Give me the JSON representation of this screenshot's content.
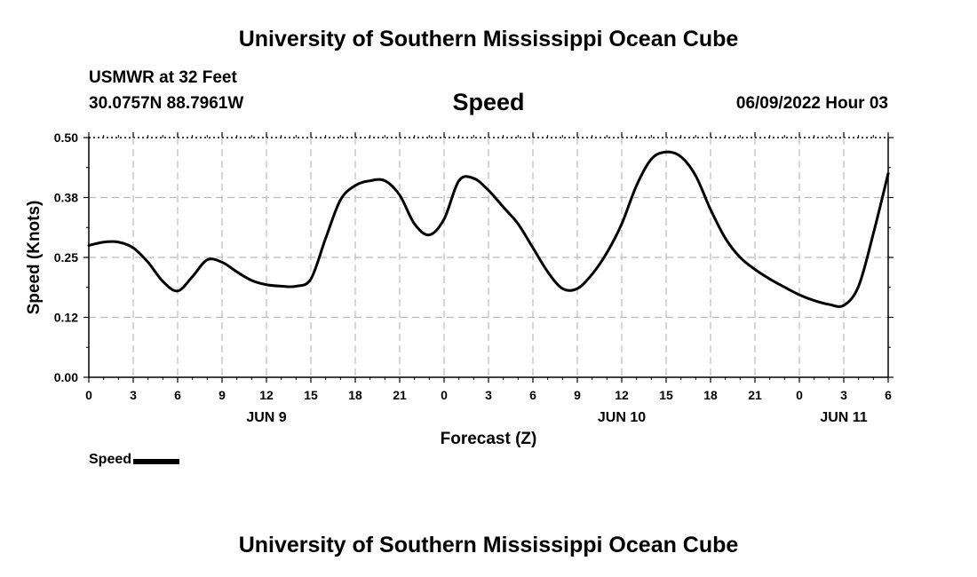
{
  "header": {
    "top_title": "University of Southern Mississippi Ocean Cube",
    "bottom_title": "University of Southern Mississippi Ocean Cube",
    "station_name": "USMWR at 32 Feet",
    "station_coords": "30.0757N  88.7961W",
    "timestamp": "06/09/2022 Hour 03"
  },
  "legend": {
    "label": "Speed"
  },
  "colors": {
    "line": "#000000",
    "grid": "#bbbbbb",
    "background": "#ffffff"
  },
  "chart_data": {
    "type": "line",
    "title": "Speed",
    "xlabel": "Forecast (Z)",
    "ylabel": "Speed (Knots)",
    "ylim": [
      0,
      0.5
    ],
    "xlim": [
      0,
      54
    ],
    "grid": true,
    "legend_position": "bottom-left",
    "y_ticks": [
      "0.00",
      "0.12",
      "0.25",
      "0.38",
      "0.50"
    ],
    "x_ticks": [
      "0",
      "3",
      "6",
      "9",
      "12",
      "15",
      "18",
      "21",
      "0",
      "3",
      "6",
      "9",
      "12",
      "15",
      "18",
      "21",
      "0",
      "3",
      "6"
    ],
    "day_labels": [
      {
        "label": "JUN 9",
        "x": 12
      },
      {
        "label": "JUN 10",
        "x": 36
      },
      {
        "label": "JUN 11",
        "x": 51
      }
    ],
    "series": [
      {
        "name": "Speed",
        "x": [
          0,
          1,
          2,
          3,
          4,
          5,
          6,
          7,
          8,
          9,
          10,
          11,
          12,
          13,
          14,
          15,
          16,
          17,
          18,
          19,
          20,
          21,
          22,
          23,
          24,
          25,
          26,
          27,
          28,
          29,
          30,
          31,
          32,
          33,
          34,
          35,
          36,
          37,
          38,
          39,
          40,
          41,
          42,
          43,
          44,
          45,
          46,
          47,
          48,
          49,
          50,
          51,
          52,
          53,
          54
        ],
        "values": [
          0.275,
          0.282,
          0.282,
          0.27,
          0.24,
          0.2,
          0.18,
          0.21,
          0.245,
          0.24,
          0.22,
          0.202,
          0.193,
          0.19,
          0.19,
          0.205,
          0.29,
          0.37,
          0.4,
          0.41,
          0.41,
          0.38,
          0.32,
          0.297,
          0.33,
          0.41,
          0.415,
          0.39,
          0.355,
          0.32,
          0.27,
          0.22,
          0.185,
          0.185,
          0.215,
          0.26,
          0.32,
          0.4,
          0.455,
          0.47,
          0.46,
          0.42,
          0.35,
          0.29,
          0.25,
          0.225,
          0.205,
          0.188,
          0.172,
          0.16,
          0.152,
          0.15,
          0.19,
          0.3,
          0.425
        ]
      }
    ]
  }
}
